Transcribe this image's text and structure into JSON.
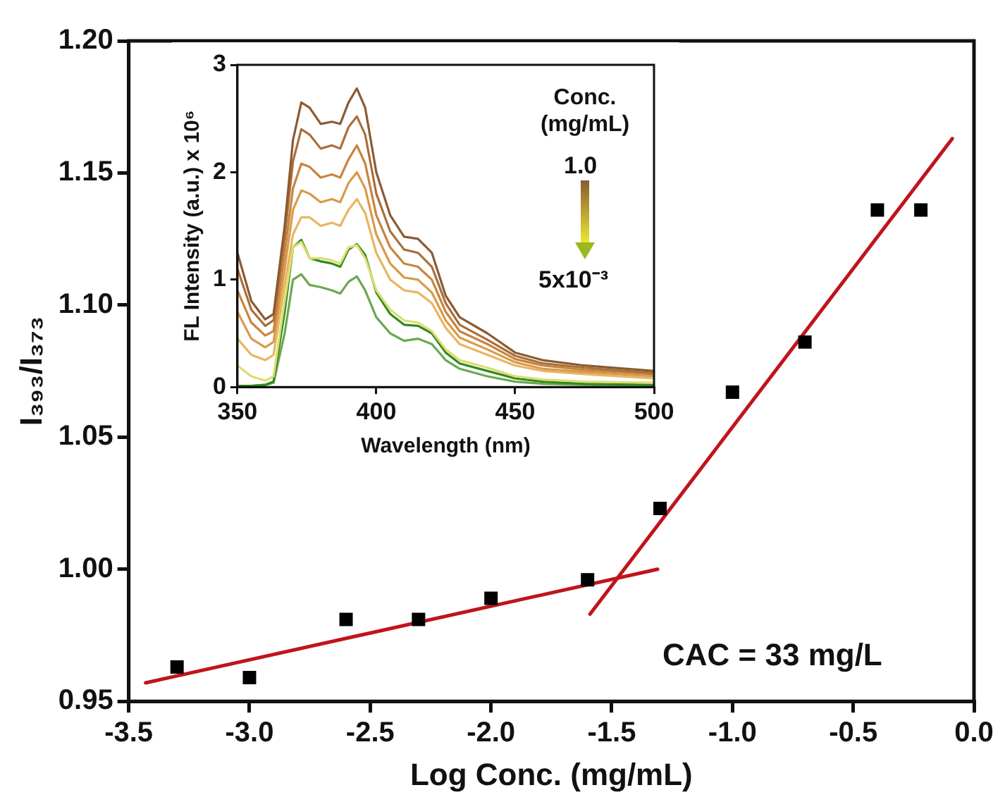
{
  "chart_data": [
    {
      "type": "scatter",
      "xlabel": "Log Conc. (mg/mL)",
      "ylabel": "I₃₉₃/I₃₇₃",
      "x": [
        -3.3,
        -3.0,
        -2.6,
        -2.3,
        -2.0,
        -1.6,
        -1.3,
        -1.0,
        -0.7,
        -0.4,
        -0.22
      ],
      "series": [
        {
          "color": "#000000",
          "values": [
            0.963,
            0.959,
            0.981,
            0.981,
            0.989,
            0.996,
            1.023,
            1.067,
            1.086,
            1.136,
            1.136
          ]
        },
        {
          "type": "line",
          "marker": "none",
          "color": "#c0141c",
          "x": [
            -3.43,
            -1.31
          ],
          "values": [
            0.957,
            1.0
          ]
        },
        {
          "type": "line",
          "marker": "none",
          "color": "#c0141c",
          "x": [
            -1.59,
            -0.09
          ],
          "values": [
            0.983,
            1.163
          ]
        }
      ],
      "xlim": [
        -3.5,
        0.0
      ],
      "xticks": [
        -3.5,
        {
          "value": -3,
          "label": "-3.0"
        },
        -2.5,
        {
          "value": -2,
          "label": "-2.0"
        },
        -1.5,
        {
          "value": -1,
          "label": "-1.0"
        },
        -0.5,
        {
          "value": 0,
          "label": "0.0"
        }
      ],
      "ylim": [
        0.95,
        1.2
      ],
      "yticks": [
        0.95,
        {
          "value": 1,
          "label": "1.00"
        },
        1.05,
        {
          "value": 1.1,
          "label": "1.10"
        },
        1.15,
        {
          "value": 1.2,
          "label": "1.20"
        }
      ],
      "grid": false,
      "marker": "square",
      "line_style": "solid",
      "annotations": [
        "CAC = 33 mg/L"
      ]
    },
    {
      "type": "line",
      "xlabel": "Wavelength (nm)",
      "ylabel": "FL Intensity (a.u.) x 10⁶",
      "legend_title": "Conc. (mg/mL)",
      "x": [
        350,
        355,
        360,
        363,
        367,
        370,
        373,
        376,
        380,
        384,
        387,
        390,
        393,
        396,
        400,
        405,
        410,
        415,
        420,
        425,
        430,
        440,
        450,
        460,
        475,
        500
      ],
      "series": [
        {
          "color": "#8b5a32",
          "values": [
            1.25,
            0.8,
            0.63,
            0.68,
            1.5,
            2.3,
            2.65,
            2.6,
            2.45,
            2.47,
            2.45,
            2.65,
            2.78,
            2.6,
            2.0,
            1.6,
            1.4,
            1.38,
            1.25,
            0.85,
            0.65,
            0.5,
            0.32,
            0.25,
            0.2,
            0.15
          ]
        },
        {
          "color": "#a8703a",
          "values": [
            1.1,
            0.72,
            0.57,
            0.62,
            1.4,
            2.1,
            2.4,
            2.35,
            2.22,
            2.25,
            2.22,
            2.42,
            2.52,
            2.35,
            1.8,
            1.45,
            1.28,
            1.25,
            1.12,
            0.78,
            0.58,
            0.44,
            0.29,
            0.22,
            0.18,
            0.13
          ]
        },
        {
          "color": "#c8843c",
          "values": [
            0.9,
            0.6,
            0.48,
            0.52,
            1.25,
            1.85,
            2.08,
            2.05,
            1.95,
            1.98,
            1.95,
            2.12,
            2.25,
            2.08,
            1.6,
            1.3,
            1.15,
            1.12,
            1.0,
            0.7,
            0.52,
            0.4,
            0.26,
            0.2,
            0.16,
            0.12
          ]
        },
        {
          "color": "#d89a4a",
          "values": [
            0.7,
            0.45,
            0.37,
            0.42,
            1.1,
            1.65,
            1.83,
            1.8,
            1.72,
            1.75,
            1.72,
            1.9,
            2.0,
            1.85,
            1.42,
            1.15,
            1.02,
            1.0,
            0.88,
            0.62,
            0.46,
            0.35,
            0.23,
            0.17,
            0.14,
            0.1
          ]
        },
        {
          "color": "#e8b560",
          "values": [
            0.45,
            0.3,
            0.25,
            0.3,
            0.95,
            1.42,
            1.58,
            1.58,
            1.5,
            1.53,
            1.5,
            1.65,
            1.75,
            1.62,
            1.25,
            1.0,
            0.9,
            0.88,
            0.78,
            0.55,
            0.4,
            0.3,
            0.2,
            0.15,
            0.12,
            0.08
          ]
        },
        {
          "color": "#e0dc70",
          "values": [
            0.2,
            0.1,
            0.06,
            0.1,
            0.8,
            1.3,
            1.35,
            1.2,
            1.2,
            1.18,
            1.15,
            1.3,
            1.32,
            1.2,
            0.9,
            0.72,
            0.62,
            0.6,
            0.52,
            0.35,
            0.25,
            0.18,
            0.1,
            0.07,
            0.05,
            0.04
          ]
        },
        {
          "color": "#2e8b1e",
          "values": [
            0.01,
            0.01,
            0.02,
            0.05,
            0.7,
            1.3,
            1.37,
            1.2,
            1.17,
            1.15,
            1.12,
            1.28,
            1.33,
            1.23,
            0.88,
            0.68,
            0.58,
            0.57,
            0.5,
            0.32,
            0.22,
            0.15,
            0.08,
            0.05,
            0.03,
            0.02
          ]
        },
        {
          "color": "#6aa84f",
          "values": [
            0.01,
            0.01,
            0.02,
            0.04,
            0.5,
            1.0,
            1.05,
            0.95,
            0.93,
            0.9,
            0.87,
            0.98,
            1.03,
            0.9,
            0.65,
            0.5,
            0.43,
            0.45,
            0.4,
            0.25,
            0.17,
            0.1,
            0.05,
            0.03,
            0.02,
            0.01
          ]
        }
      ],
      "xlim": [
        350,
        500
      ],
      "xticks": [
        350,
        400,
        450,
        500
      ],
      "ylim": [
        0,
        3
      ],
      "yticks": [
        0,
        1,
        2,
        3
      ],
      "grid": false,
      "marker": "none",
      "line_style": "solid",
      "annotations": [
        "1.0",
        "5x10⁻³"
      ]
    }
  ]
}
